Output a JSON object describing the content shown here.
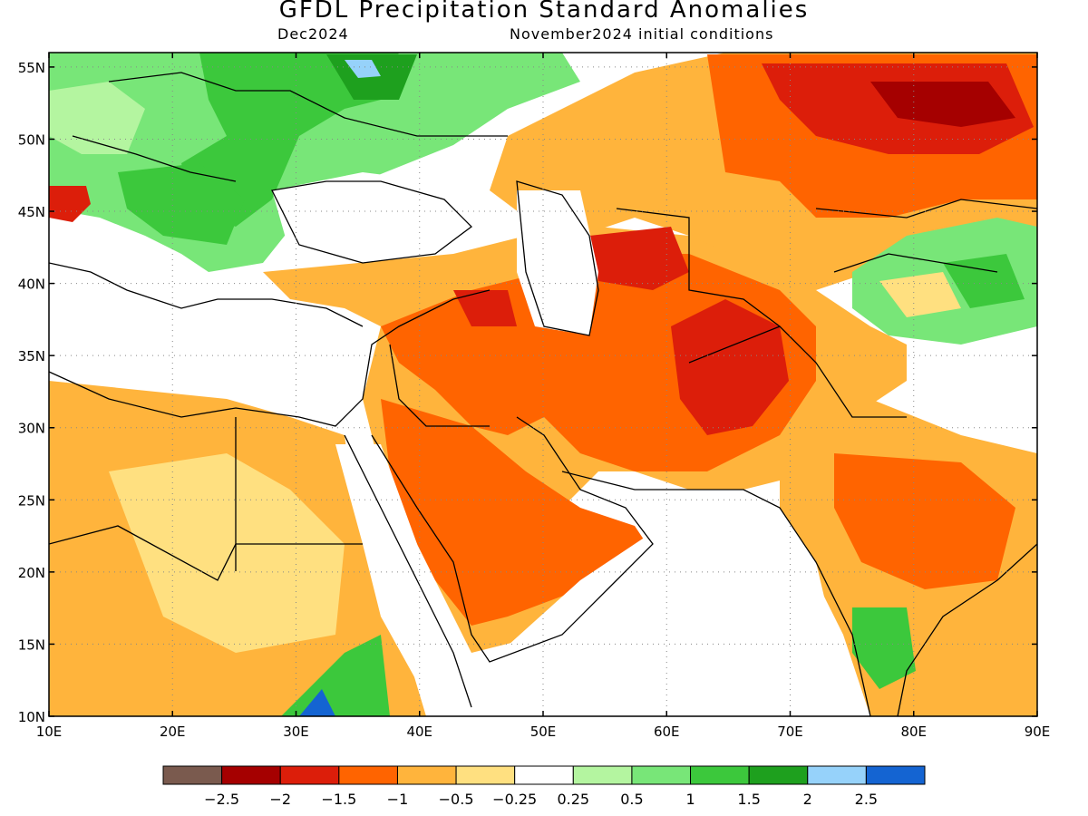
{
  "title": "GFDL Precipitation Standard Anomalies",
  "subtitle_left": "Dec2024",
  "subtitle_right": "November2024 initial conditions",
  "map": {
    "lon_range": [
      10,
      90
    ],
    "lat_range": [
      10,
      56
    ],
    "lon_ticks": [
      "10E",
      "20E",
      "30E",
      "40E",
      "50E",
      "60E",
      "70E",
      "80E",
      "90E"
    ],
    "lat_ticks": [
      "10N",
      "15N",
      "20N",
      "25N",
      "30N",
      "35N",
      "40N",
      "45N",
      "50N",
      "55N"
    ],
    "grid": "dotted"
  },
  "colorbar": {
    "colors": [
      "#7a5a4e",
      "#a50000",
      "#dc1e0a",
      "#ff6400",
      "#ffb43c",
      "#ffe080",
      "#ffffff",
      "#b4f5a0",
      "#78e678",
      "#3cc83c",
      "#1ea01e",
      "#96d2fa",
      "#1464d2"
    ],
    "labels": [
      "−2.5",
      "−2",
      "−1.5",
      "−1",
      "−0.5",
      "−0.25",
      "0.25",
      "0.5",
      "1",
      "1.5",
      "2",
      "2.5"
    ]
  }
}
